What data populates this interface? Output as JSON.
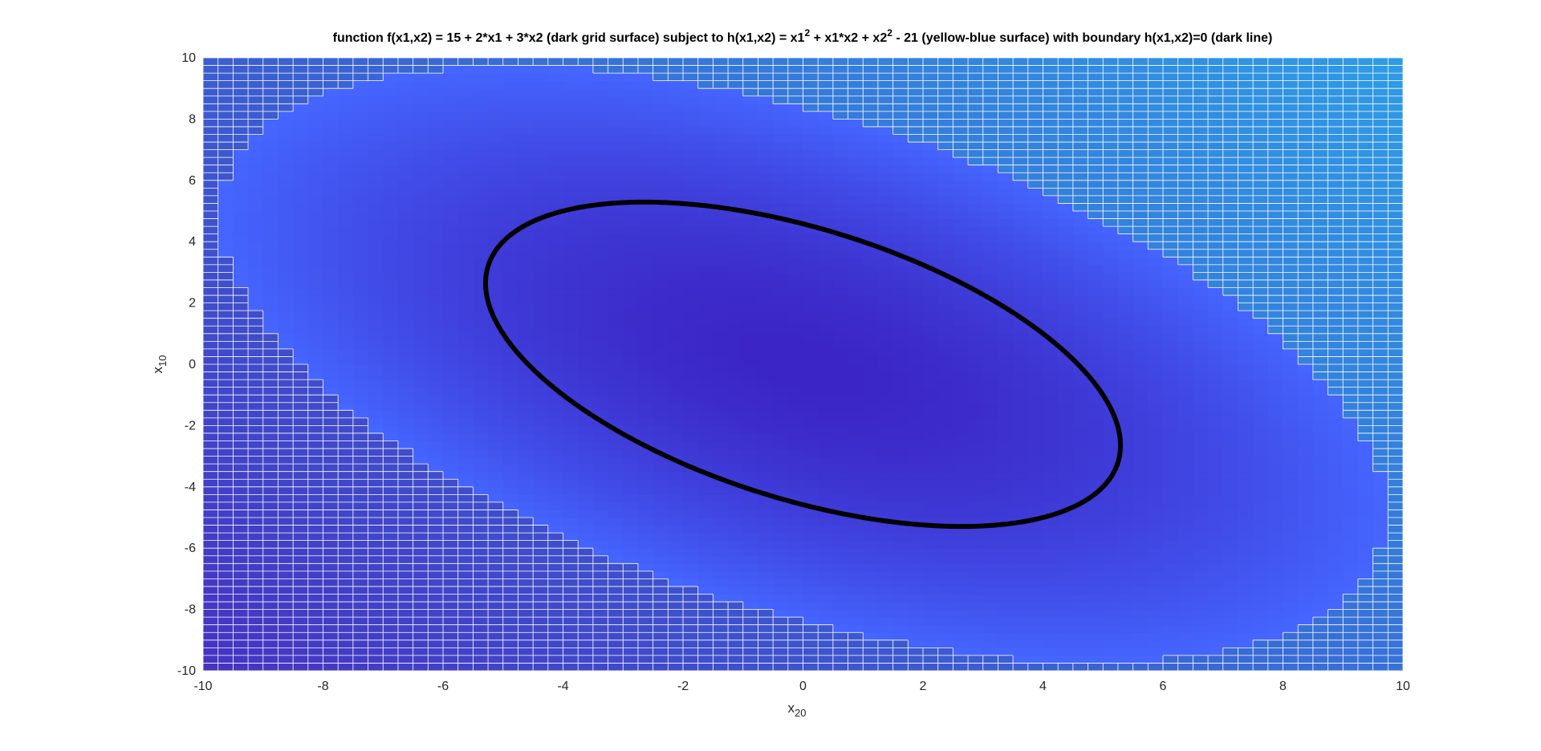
{
  "chart_data": {
    "type": "heatmap",
    "title": {
      "part1": "function f(x1,x2) = 15 + 2*x1 + 3*x2 (dark grid surface) subject to h(x1,x2) = x1",
      "sup1": "2",
      "part2": " + x1*x2 + x2",
      "sup2": "2",
      "part3": " - 21 (yellow-blue surface) with boundary h(x1,x2)=0 (dark line)"
    },
    "xlabel": {
      "main": "x",
      "sub": "20"
    },
    "ylabel": {
      "main": "x",
      "sub": "10"
    },
    "xlim": [
      -10,
      10
    ],
    "ylim": [
      -10,
      10
    ],
    "xticks": [
      "-10",
      "-8",
      "-6",
      "-4",
      "-2",
      "0",
      "2",
      "4",
      "6",
      "8",
      "10"
    ],
    "yticks": [
      "-10",
      "-8",
      "-6",
      "-4",
      "-2",
      "0",
      "2",
      "4",
      "6",
      "8",
      "10"
    ],
    "grid_step": 0.25,
    "constraint_surface": {
      "expression": "x1^2 + x1*x2 + x2^2 - 21",
      "visible_region": "h(x1,x2) < 50"
    },
    "boundary": {
      "expression": "h(x1,x2)=0",
      "color": "#000000"
    },
    "colors": {
      "objective_low": "#4533c2",
      "objective_high": "#2e9ce6",
      "constraint_low": "#3b25c4",
      "constraint_high": "#4566ff",
      "grid_line": "#ffffff"
    }
  }
}
